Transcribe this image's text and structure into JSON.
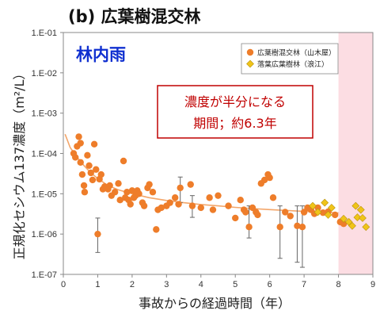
{
  "chart_data": {
    "type": "scatter",
    "title": "(b) 広葉樹混交林",
    "xlabel": "事故からの経過時間（年）",
    "ylabel": "正規化セシウム137濃度（m²/L）",
    "xlim": [
      0,
      9
    ],
    "ylim": [
      1e-07,
      0.1
    ],
    "yscale": "log",
    "x_ticks": [
      "0",
      "1",
      "2",
      "3",
      "4",
      "5",
      "6",
      "7",
      "8",
      "9"
    ],
    "y_ticks": [
      "1.E-07",
      "1.E-06",
      "1.E-05",
      "1.E-04",
      "1.E-03",
      "1.E-02",
      "1.E-01"
    ],
    "grid": false,
    "legend_position": "top-right",
    "annotation": {
      "subject": "林内雨",
      "half_period_line1": "濃度が半分になる",
      "half_period_line2": "期間；約6.3年",
      "color": "#c00000"
    },
    "shaded_region": {
      "x": [
        8,
        9
      ],
      "color": "#fcdde3"
    },
    "fit_curve": {
      "color": "#f3a66a",
      "x": [
        0.05,
        0.2,
        0.4,
        0.6,
        0.8,
        1,
        1.3,
        1.6,
        2,
        2.5,
        3,
        3.5,
        4,
        4.5,
        5,
        5.5,
        6,
        6.5,
        7,
        7.5,
        8
      ],
      "y": [
        0.0003,
        0.00014,
        8e-05,
        5e-05,
        3.3e-05,
        2.4e-05,
        1.6e-05,
        1.25e-05,
        1e-05,
        8e-06,
        6.8e-06,
        6e-06,
        5.4e-06,
        5e-06,
        4.6e-06,
        4.3e-06,
        4.05e-06,
        3.85e-06,
        3.65e-06,
        3.5e-06,
        3.35e-06
      ]
    },
    "series": [
      {
        "name": "広葉樹混交林（山木屋）",
        "marker": "circle",
        "color": "#ee7d2a",
        "points": [
          {
            "x": 0.3,
            "y": 0.0001
          },
          {
            "x": 0.35,
            "y": 8e-05
          },
          {
            "x": 0.4,
            "y": 0.00015
          },
          {
            "x": 0.45,
            "y": 0.00026
          },
          {
            "x": 0.5,
            "y": 0.00018
          },
          {
            "x": 0.5,
            "y": 6e-05
          },
          {
            "x": 0.55,
            "y": 3e-05
          },
          {
            "x": 0.6,
            "y": 1.6e-05
          },
          {
            "x": 0.62,
            "y": 1.1e-05
          },
          {
            "x": 0.7,
            "y": 9e-05
          },
          {
            "x": 0.75,
            "y": 5e-05
          },
          {
            "x": 0.8,
            "y": 3.3e-05
          },
          {
            "x": 0.85,
            "y": 2.2e-05
          },
          {
            "x": 0.9,
            "y": 0.00017
          },
          {
            "x": 0.95,
            "y": 4e-05
          },
          {
            "x": 1.0,
            "y": 1e-06,
            "lo": 3.5e-07,
            "hi": 2.5e-06
          },
          {
            "x": 1.05,
            "y": 2.3e-05
          },
          {
            "x": 1.1,
            "y": 3e-05
          },
          {
            "x": 1.15,
            "y": 1.3e-05
          },
          {
            "x": 1.2,
            "y": 1.5e-05
          },
          {
            "x": 1.3,
            "y": 1.3e-05
          },
          {
            "x": 1.35,
            "y": 1.6e-05
          },
          {
            "x": 1.4,
            "y": 9e-06
          },
          {
            "x": 1.5,
            "y": 1.1e-05
          },
          {
            "x": 1.6,
            "y": 1.8e-05
          },
          {
            "x": 1.65,
            "y": 7e-06
          },
          {
            "x": 1.75,
            "y": 6.5e-05
          },
          {
            "x": 1.8,
            "y": 8e-06
          },
          {
            "x": 1.85,
            "y": 1.1e-05
          },
          {
            "x": 1.9,
            "y": 7e-06
          },
          {
            "x": 1.95,
            "y": 5.5e-06
          },
          {
            "x": 2.0,
            "y": 1.2e-05
          },
          {
            "x": 2.05,
            "y": 8e-06
          },
          {
            "x": 2.1,
            "y": 9e-06
          },
          {
            "x": 2.15,
            "y": 1.2e-05
          },
          {
            "x": 2.2,
            "y": 1e-05
          },
          {
            "x": 2.3,
            "y": 6e-06
          },
          {
            "x": 2.35,
            "y": 5e-06
          },
          {
            "x": 2.45,
            "y": 1.4e-05
          },
          {
            "x": 2.5,
            "y": 1.7e-05
          },
          {
            "x": 2.6,
            "y": 1.1e-05
          },
          {
            "x": 2.7,
            "y": 1.3e-06
          },
          {
            "x": 2.75,
            "y": 4e-06
          },
          {
            "x": 2.85,
            "y": 4.5e-06
          },
          {
            "x": 3.0,
            "y": 5e-06
          },
          {
            "x": 3.1,
            "y": 6e-06
          },
          {
            "x": 3.25,
            "y": 8e-06
          },
          {
            "x": 3.35,
            "y": 5.5e-06
          },
          {
            "x": 3.4,
            "y": 1.4e-05,
            "lo": 6e-06,
            "hi": 2.6e-05
          },
          {
            "x": 3.7,
            "y": 1.7e-05
          },
          {
            "x": 3.75,
            "y": 5e-06,
            "lo": 2.6e-06,
            "hi": 9e-06
          },
          {
            "x": 4.0,
            "y": 4.5e-06
          },
          {
            "x": 4.25,
            "y": 8e-06
          },
          {
            "x": 4.35,
            "y": 4e-06
          },
          {
            "x": 4.5,
            "y": 9e-06
          },
          {
            "x": 4.8,
            "y": 5e-06
          },
          {
            "x": 5.0,
            "y": 2.5e-06
          },
          {
            "x": 5.15,
            "y": 7e-06
          },
          {
            "x": 5.25,
            "y": 4e-06
          },
          {
            "x": 5.3,
            "y": 3.5e-06
          },
          {
            "x": 5.4,
            "y": 1.5e-06,
            "lo": 8e-07,
            "hi": 5e-06
          },
          {
            "x": 5.5,
            "y": 4.5e-06
          },
          {
            "x": 5.6,
            "y": 3.5e-06
          },
          {
            "x": 5.65,
            "y": 3e-06
          },
          {
            "x": 5.75,
            "y": 1.8e-05
          },
          {
            "x": 5.85,
            "y": 2.2e-05
          },
          {
            "x": 5.95,
            "y": 3e-05
          },
          {
            "x": 6.0,
            "y": 2.5e-05
          },
          {
            "x": 6.1,
            "y": 8e-06
          },
          {
            "x": 6.3,
            "y": 1.5e-06,
            "lo": 2.5e-07,
            "hi": 5e-06
          },
          {
            "x": 6.45,
            "y": 3.5e-06
          },
          {
            "x": 6.6,
            "y": 2.8e-06
          },
          {
            "x": 6.8,
            "y": 1.6e-06,
            "lo": 2e-07,
            "hi": 5e-06
          },
          {
            "x": 6.95,
            "y": 1.5e-06,
            "lo": 1.5e-07,
            "hi": 5e-06
          },
          {
            "x": 7.0,
            "y": 3.5e-06
          },
          {
            "x": 7.1,
            "y": 4.5e-06
          },
          {
            "x": 7.2,
            "y": 4e-06
          },
          {
            "x": 7.3,
            "y": 3.2e-06
          },
          {
            "x": 7.4,
            "y": 4.5e-06
          },
          {
            "x": 7.55,
            "y": 3.4e-06
          },
          {
            "x": 7.7,
            "y": 3.6e-06
          },
          {
            "x": 7.9,
            "y": 3e-06
          },
          {
            "x": 8.05,
            "y": 2e-06
          },
          {
            "x": 8.15,
            "y": 1.8e-06
          }
        ]
      },
      {
        "name": "落葉広葉樹林（浪江）",
        "marker": "diamond",
        "color": "#f0c419",
        "points": [
          {
            "x": 7.25,
            "y": 5e-06
          },
          {
            "x": 7.4,
            "y": 3.5e-06
          },
          {
            "x": 7.6,
            "y": 6e-06
          },
          {
            "x": 7.7,
            "y": 3e-06
          },
          {
            "x": 7.8,
            "y": 4.5e-06
          },
          {
            "x": 8.15,
            "y": 2.4e-06
          },
          {
            "x": 8.3,
            "y": 2e-06
          },
          {
            "x": 8.4,
            "y": 1.6e-06
          },
          {
            "x": 8.5,
            "y": 5e-06
          },
          {
            "x": 8.55,
            "y": 2.6e-06
          },
          {
            "x": 8.65,
            "y": 4e-06
          },
          {
            "x": 8.7,
            "y": 2.5e-06
          },
          {
            "x": 8.8,
            "y": 1.5e-06
          }
        ]
      }
    ]
  }
}
